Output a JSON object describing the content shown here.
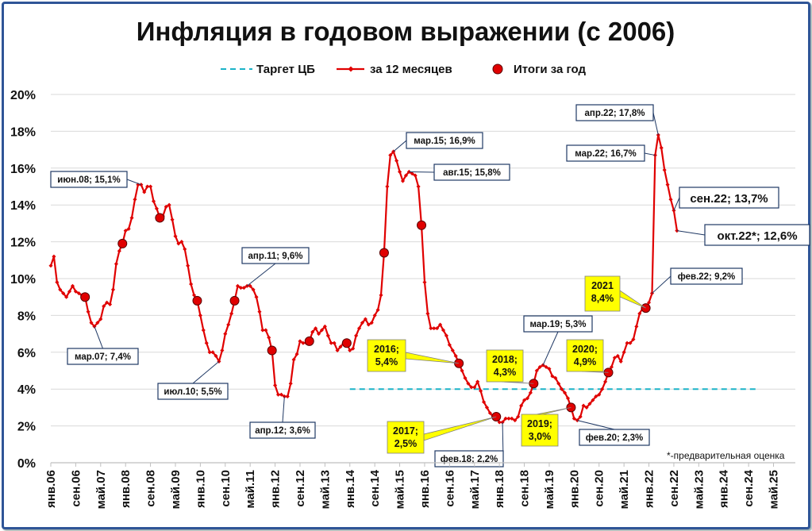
{
  "chart_data": {
    "type": "line",
    "title": "Инфляция в годовом выражении (с 2006)",
    "legend": {
      "placement": "top",
      "items": [
        {
          "label": "Таргет ЦБ",
          "style": "dashed",
          "color": "#1bb3c8"
        },
        {
          "label": "за 12 месяцев",
          "style": "line-markers",
          "color": "#e00000"
        },
        {
          "label": "Итоги за год",
          "style": "dots",
          "color": "#e00000"
        }
      ]
    },
    "ylim": [
      0,
      20
    ],
    "y_ticks": [
      "0%",
      "2%",
      "4%",
      "6%",
      "8%",
      "10%",
      "12%",
      "14%",
      "16%",
      "18%",
      "20%"
    ],
    "x_range": [
      "2006-01",
      "2025-12"
    ],
    "x_ticks": [
      "янв.06",
      "сен.06",
      "май.07",
      "янв.08",
      "сен.08",
      "май.09",
      "янв.10",
      "сен.10",
      "май.11",
      "янв.12",
      "сен.12",
      "май.13",
      "янв.14",
      "сен.14",
      "май.15",
      "янв.16",
      "сен.16",
      "май.17",
      "янв.18",
      "сен.18",
      "май.19",
      "янв.20",
      "сен.20",
      "май.21",
      "янв.22",
      "сен.22",
      "май.23",
      "янв.24",
      "сен.24",
      "май.25"
    ],
    "grid": "horizontal",
    "series": [
      {
        "name": "за 12 месяцев",
        "start": "2006-01",
        "values": [
          10.7,
          11.2,
          9.8,
          9.4,
          9.2,
          9.0,
          9.3,
          9.6,
          9.3,
          9.2,
          9.1,
          9.0,
          8.2,
          7.6,
          7.4,
          7.6,
          7.8,
          8.5,
          8.7,
          8.6,
          9.4,
          10.8,
          11.5,
          11.9,
          12.6,
          12.7,
          13.3,
          14.3,
          15.1,
          15.1,
          14.7,
          15.0,
          15.0,
          14.2,
          13.8,
          13.3,
          13.4,
          13.9,
          14.0,
          13.2,
          12.3,
          11.9,
          12.0,
          11.6,
          10.7,
          9.7,
          9.1,
          8.8,
          8.0,
          7.2,
          6.5,
          6.0,
          6.0,
          5.8,
          5.5,
          6.1,
          7.0,
          7.5,
          8.1,
          8.8,
          9.6,
          9.5,
          9.5,
          9.6,
          9.6,
          9.4,
          9.0,
          8.2,
          7.2,
          7.2,
          6.8,
          6.1,
          4.2,
          3.7,
          3.7,
          3.6,
          3.6,
          4.3,
          5.6,
          5.9,
          6.6,
          6.5,
          6.5,
          6.6,
          7.1,
          7.3,
          7.0,
          7.2,
          7.4,
          6.9,
          6.5,
          6.5,
          6.1,
          6.3,
          6.5,
          6.5,
          6.1,
          6.2,
          6.9,
          7.3,
          7.6,
          7.8,
          7.5,
          7.6,
          8.0,
          8.3,
          9.1,
          11.4,
          15.0,
          16.7,
          16.9,
          16.4,
          15.8,
          15.3,
          15.6,
          15.8,
          15.7,
          15.6,
          15.0,
          12.9,
          9.8,
          8.1,
          7.3,
          7.3,
          7.3,
          7.5,
          7.2,
          6.9,
          6.4,
          6.1,
          5.8,
          5.4,
          5.0,
          4.6,
          4.3,
          4.1,
          4.1,
          4.4,
          3.9,
          3.3,
          3.0,
          2.7,
          2.5,
          2.5,
          2.2,
          2.2,
          2.4,
          2.4,
          2.4,
          2.3,
          2.5,
          3.1,
          3.4,
          3.5,
          3.8,
          4.3,
          5.0,
          5.2,
          5.3,
          5.2,
          5.1,
          4.7,
          4.6,
          4.3,
          4.0,
          3.8,
          3.5,
          3.0,
          2.4,
          2.3,
          2.5,
          3.1,
          3.0,
          3.2,
          3.4,
          3.6,
          3.7,
          4.0,
          4.4,
          4.9,
          5.2,
          5.7,
          5.8,
          5.5,
          6.0,
          6.5,
          6.5,
          6.7,
          7.4,
          8.1,
          8.4,
          8.4,
          8.7,
          9.2,
          16.7,
          17.8,
          17.1,
          15.9,
          15.1,
          14.3,
          13.7,
          12.6
        ]
      }
    ],
    "year_results": [
      {
        "date": "2006-12",
        "value": 9.0
      },
      {
        "date": "2007-12",
        "value": 11.9
      },
      {
        "date": "2008-12",
        "value": 13.3
      },
      {
        "date": "2009-12",
        "value": 8.8
      },
      {
        "date": "2010-12",
        "value": 8.8
      },
      {
        "date": "2011-12",
        "value": 6.1
      },
      {
        "date": "2012-12",
        "value": 6.6
      },
      {
        "date": "2013-12",
        "value": 6.5
      },
      {
        "date": "2014-12",
        "value": 11.4
      },
      {
        "date": "2015-12",
        "value": 12.9
      },
      {
        "date": "2016-12",
        "value": 5.4
      },
      {
        "date": "2017-12",
        "value": 2.5
      },
      {
        "date": "2018-12",
        "value": 4.3
      },
      {
        "date": "2019-12",
        "value": 3.0
      },
      {
        "date": "2020-12",
        "value": 4.9
      },
      {
        "date": "2021-12",
        "value": 8.4
      }
    ],
    "target": {
      "value": 4,
      "from": "2014-01",
      "to": "2024-12"
    },
    "annotations": [
      {
        "text": "июн.08; 15,1%",
        "date": "2008-06",
        "value": 15.1,
        "style": "box"
      },
      {
        "text": "мар.07; 7,4%",
        "date": "2007-03",
        "value": 7.4,
        "style": "box"
      },
      {
        "text": "апр.11; 9,6%",
        "date": "2011-04",
        "value": 9.6,
        "style": "box"
      },
      {
        "text": "июл.10; 5,5%",
        "date": "2010-07",
        "value": 5.5,
        "style": "box"
      },
      {
        "text": "апр.12; 3,6%",
        "date": "2012-04",
        "value": 3.6,
        "style": "box"
      },
      {
        "text": "мар.15; 16,9%",
        "date": "2015-03",
        "value": 16.9,
        "style": "box"
      },
      {
        "text": "авг.15; 15,8%",
        "date": "2015-08",
        "value": 15.8,
        "style": "box"
      },
      {
        "text": "фев.18; 2,2%",
        "date": "2018-02",
        "value": 2.2,
        "style": "box"
      },
      {
        "text": "мар.19; 5,3%",
        "date": "2019-03",
        "value": 5.3,
        "style": "box"
      },
      {
        "text": "фев.20; 2,3%",
        "date": "2020-02",
        "value": 2.3,
        "style": "box"
      },
      {
        "text": "фев.22; 9,2%",
        "date": "2022-02",
        "value": 9.2,
        "style": "box"
      },
      {
        "text": "мар.22; 16,7%",
        "date": "2022-03",
        "value": 16.7,
        "style": "box"
      },
      {
        "text": "апр.22; 17,8%",
        "date": "2022-04",
        "value": 17.8,
        "style": "box"
      },
      {
        "text": "сен.22; 13,7%",
        "date": "2022-09",
        "value": 13.7,
        "style": "box-large"
      },
      {
        "text": "окт.22*; 12,6%",
        "date": "2022-10",
        "value": 12.6,
        "style": "box-large"
      },
      {
        "lines": [
          "2016;",
          "5,4%"
        ],
        "date": "2016-12",
        "value": 5.4,
        "style": "yellow"
      },
      {
        "lines": [
          "2017;",
          "2,5%"
        ],
        "date": "2017-12",
        "value": 2.5,
        "style": "yellow"
      },
      {
        "lines": [
          "2018;",
          "4,3%"
        ],
        "date": "2018-12",
        "value": 4.3,
        "style": "yellow"
      },
      {
        "lines": [
          "2019;",
          "3,0%"
        ],
        "date": "2019-12",
        "value": 3.0,
        "style": "yellow"
      },
      {
        "lines": [
          "2020;",
          "4,9%"
        ],
        "date": "2020-12",
        "value": 4.9,
        "style": "yellow"
      },
      {
        "lines": [
          "2021",
          "8,4%"
        ],
        "date": "2021-12",
        "value": 8.4,
        "style": "yellow"
      }
    ],
    "footnote": "*-предварительная оценка"
  }
}
